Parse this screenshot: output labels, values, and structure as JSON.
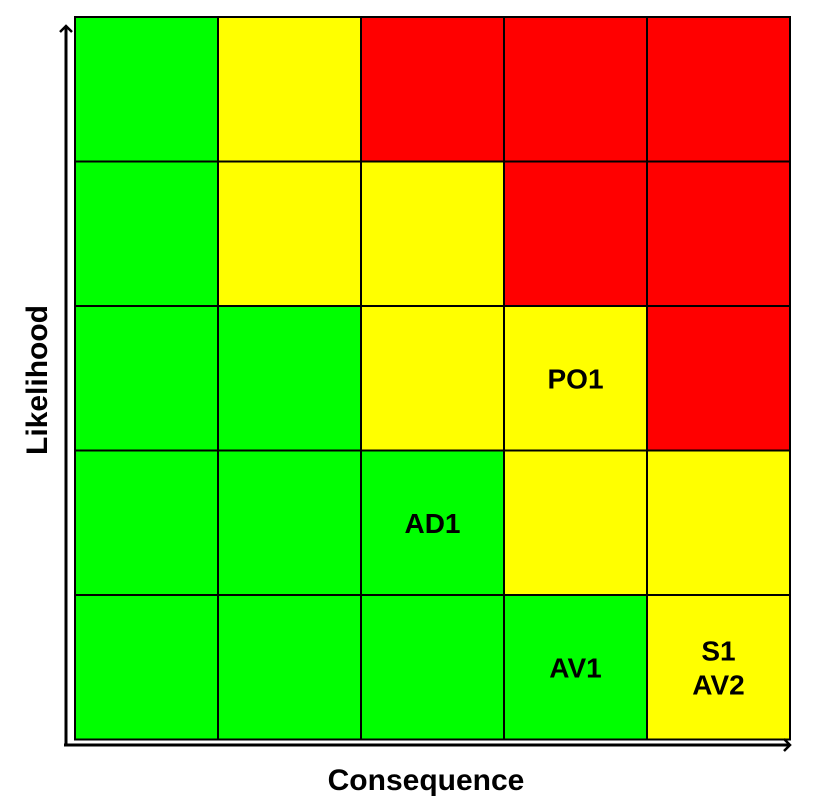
{
  "axes": {
    "x_label": "Consequence",
    "y_label": "Likelihood"
  },
  "colors": {
    "low": "#00ff00",
    "medium": "#ffff00",
    "high": "#ff0000",
    "grid": "#000000"
  },
  "matrix": {
    "rows": 5,
    "cols": 5,
    "cells": [
      [
        "low",
        "medium",
        "high",
        "high",
        "high"
      ],
      [
        "low",
        "medium",
        "medium",
        "high",
        "high"
      ],
      [
        "low",
        "low",
        "medium",
        "medium",
        "high"
      ],
      [
        "low",
        "low",
        "low",
        "medium",
        "medium"
      ],
      [
        "low",
        "low",
        "low",
        "low",
        "medium"
      ]
    ]
  },
  "risks": [
    {
      "row": 2,
      "col": 3,
      "lines": [
        "PO1"
      ]
    },
    {
      "row": 3,
      "col": 2,
      "lines": [
        "AD1"
      ]
    },
    {
      "row": 4,
      "col": 3,
      "lines": [
        "AV1"
      ]
    },
    {
      "row": 4,
      "col": 4,
      "lines": [
        "S1",
        "AV2"
      ]
    }
  ]
}
